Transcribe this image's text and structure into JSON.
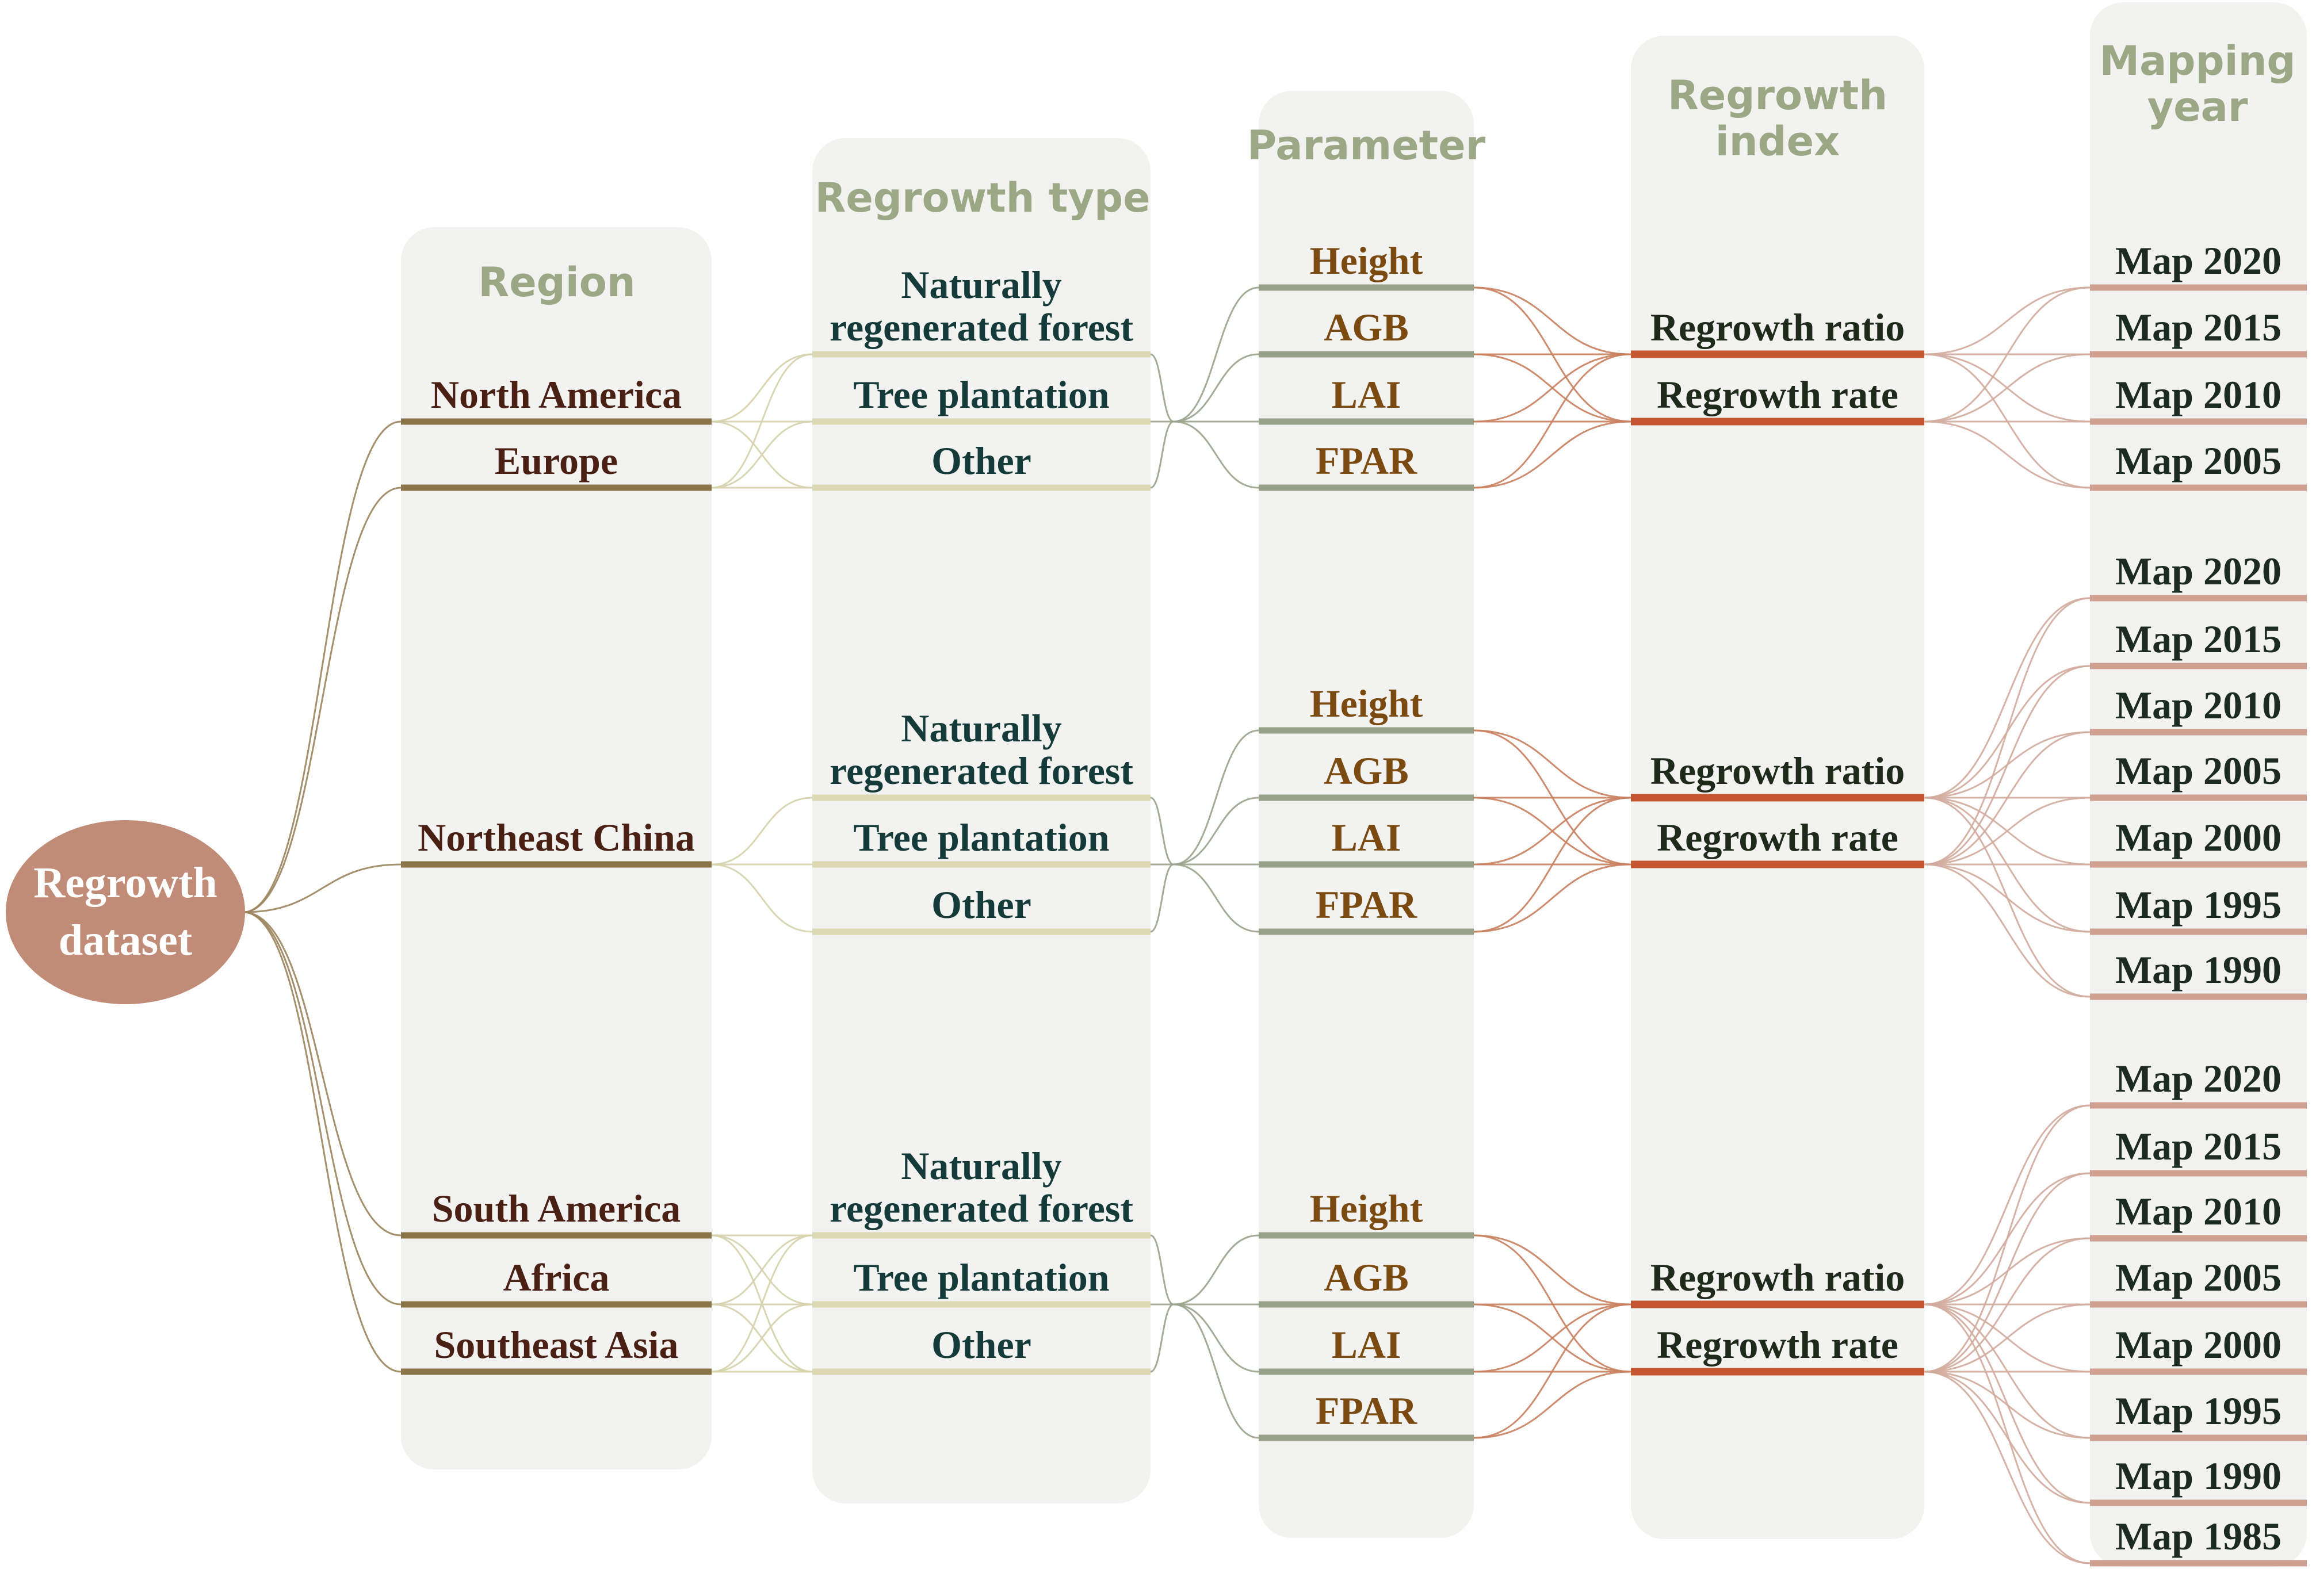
{
  "root": "Regrowth dataset",
  "headers": {
    "region": "Region",
    "regrowth_type": "Regrowth type",
    "parameter": "Parameter",
    "regrowth_index": "Regrowth index",
    "mapping_year": "Mapping year"
  },
  "groups": [
    {
      "regions": [
        "North America",
        "Europe"
      ],
      "types": [
        "Naturally regenerated forest",
        "Tree plantation",
        "Other"
      ],
      "parameters": [
        "Height",
        "AGB",
        "LAI",
        "FPAR"
      ],
      "indices": [
        "Regrowth ratio",
        "Regrowth rate"
      ],
      "years": [
        "Map 2020",
        "Map 2015",
        "Map 2010",
        "Map 2005"
      ]
    },
    {
      "regions": [
        "Northeast China"
      ],
      "types": [
        "Naturally regenerated forest",
        "Tree plantation",
        "Other"
      ],
      "parameters": [
        "Height",
        "AGB",
        "LAI",
        "FPAR"
      ],
      "indices": [
        "Regrowth ratio",
        "Regrowth rate"
      ],
      "years": [
        "Map 2020",
        "Map 2015",
        "Map 2010",
        "Map 2005",
        "Map 2000",
        "Map 1995",
        "Map 1990"
      ]
    },
    {
      "regions": [
        "South America",
        "Africa",
        "Southeast Asia"
      ],
      "types": [
        "Naturally regenerated forest",
        "Tree plantation",
        "Other"
      ],
      "parameters": [
        "Height",
        "AGB",
        "LAI",
        "FPAR"
      ],
      "indices": [
        "Regrowth ratio",
        "Regrowth rate"
      ],
      "years": [
        "Map 2020",
        "Map 2015",
        "Map 2010",
        "Map 2005",
        "Map 2000",
        "Map 1995",
        "Map 1990",
        "Map 1985"
      ]
    }
  ],
  "colors": {
    "column_bg": "#f2f2f0",
    "header_text": "#9aa886",
    "root_fill": "#c08b77",
    "region_bar": "#8b7548",
    "region_text": "#4a1f14",
    "type_bar": "#ddd8b4",
    "type_text": "#143a3a",
    "param_bar": "#97a18a",
    "param_text": "#7a4a10",
    "index_bar": "#c4552e",
    "index_text": "#1e2a1a",
    "year_bar": "#cfa08f",
    "year_text": "#1b2a22",
    "link_region": "#9a845c",
    "link_type": "#d6d1ac",
    "link_param": "#9aa38c",
    "link_index": "#c9805e",
    "link_year": "#d2ab9d"
  }
}
